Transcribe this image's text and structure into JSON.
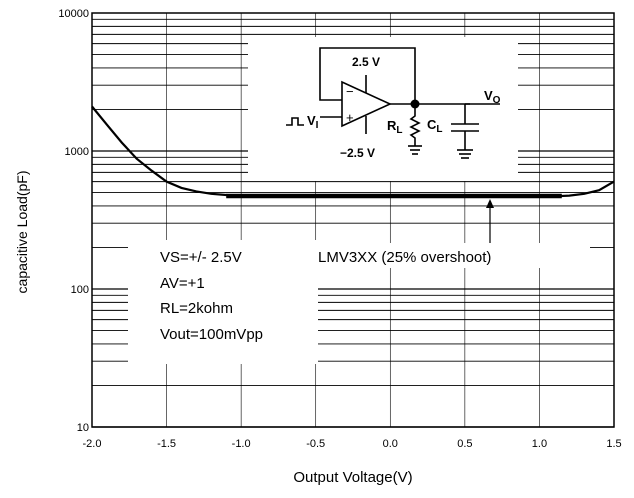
{
  "chart_data": {
    "type": "line",
    "title": "",
    "xlabel": "Output Voltage(V)",
    "ylabel": "capacitive Load(pF)",
    "xlim": [
      -2.0,
      1.5
    ],
    "ylim": [
      10,
      10000
    ],
    "yscale": "log",
    "grid": true,
    "x_ticks": [
      "-2.0",
      "-1.5",
      "-1.0",
      "-0.5",
      "0.0",
      "0.5",
      "1.0",
      "1.5"
    ],
    "x_tick_values": [
      -2.0,
      -1.5,
      -1.0,
      -0.5,
      0.0,
      0.5,
      1.0,
      1.5
    ],
    "y_ticks": [
      "10",
      "100",
      "1000",
      "10000"
    ],
    "y_tick_values": [
      10,
      100,
      1000,
      10000
    ],
    "series": [
      {
        "name": "LMV3XX (25% overshoot)",
        "color": "#000000",
        "x": [
          -2.0,
          -1.9,
          -1.8,
          -1.7,
          -1.6,
          -1.5,
          -1.4,
          -1.3,
          -1.2,
          -1.1,
          -1.0,
          -0.5,
          0.0,
          0.5,
          1.0,
          1.1,
          1.2,
          1.3,
          1.4,
          1.5
        ],
        "y": [
          2100,
          1550,
          1150,
          880,
          720,
          600,
          540,
          510,
          490,
          480,
          470,
          470,
          470,
          470,
          470,
          470,
          475,
          490,
          520,
          600
        ]
      }
    ],
    "annotations": {
      "conditions": [
        "VS=+/- 2.5V",
        "AV=+1",
        "RL=2kohm",
        "Vout=100mVpp"
      ],
      "series_label": "LMV3XX (25% overshoot)"
    },
    "circuit": {
      "supply_top": "2.5 V",
      "supply_bottom": "−2.5 V",
      "input": "V",
      "input_sub": "I",
      "output": "V",
      "output_sub": "O",
      "resistor": "R",
      "resistor_sub": "L",
      "capacitor": "C",
      "capacitor_sub": "L",
      "minus_sign": "−",
      "plus_sign": "+"
    }
  }
}
